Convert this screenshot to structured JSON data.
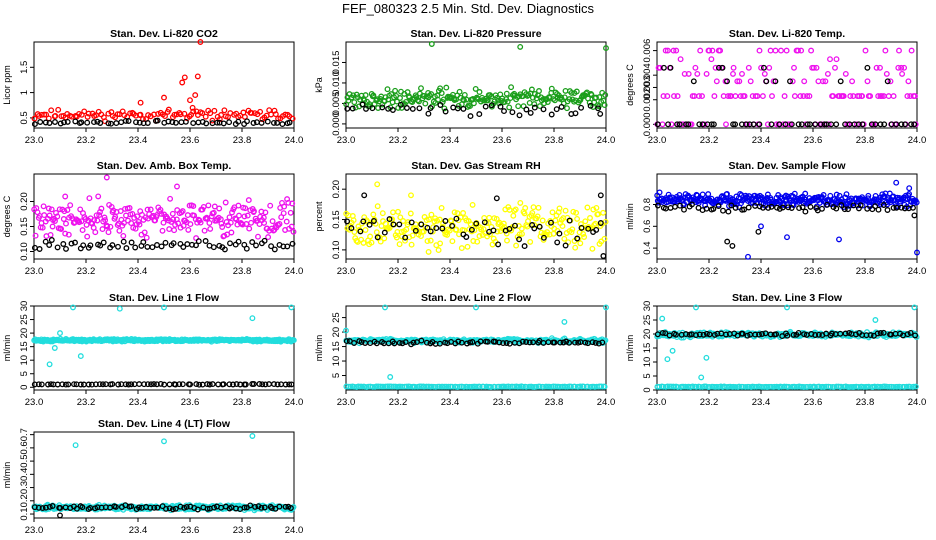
{
  "page": {
    "title": "FEF_080323  2.5 Min. Std. Dev. Diagnostics"
  },
  "chart_data": [
    {
      "type": "scatter",
      "title": "Stan. Dev. Li-820 CO2",
      "ylabel": "Licor ppm",
      "xlim": [
        23.0,
        24.0
      ],
      "ylim": [
        0.3,
        2.0
      ],
      "x_ticks": [
        "23.0",
        "23.2",
        "23.4",
        "23.6",
        "23.8",
        "24.0"
      ],
      "y_ticks": [
        {
          "v": 0.5,
          "t": "0.5"
        },
        {
          "v": 1.0,
          "t": "1"
        },
        {
          "v": 1.5,
          "t": "1.5"
        }
      ],
      "series": [
        {
          "color": "#ff0000",
          "gen": {
            "kind": "noise",
            "n": 110,
            "base": 0.42,
            "spread": 0.28,
            "seed": 11
          },
          "points": [
            [
              23.57,
              1.2
            ],
            [
              23.58,
              1.3
            ],
            [
              23.6,
              0.85
            ],
            [
              23.62,
              0.95
            ],
            [
              23.61,
              0.7
            ],
            [
              23.64,
              2.0
            ],
            [
              23.5,
              0.9
            ],
            [
              23.41,
              0.8
            ],
            [
              23.63,
              1.32
            ]
          ]
        },
        {
          "color": "#000000",
          "gen": {
            "kind": "noise",
            "n": 55,
            "base": 0.36,
            "spread": 0.1,
            "seed": 12
          }
        }
      ]
    },
    {
      "type": "scatter",
      "title": "Stan. Dev. Li-820 Pressure",
      "ylabel": "kPa",
      "xlim": [
        23.0,
        24.0
      ],
      "ylim": [
        -0.001,
        0.02
      ],
      "x_ticks": [
        "23.0",
        "23.2",
        "23.4",
        "23.6",
        "23.8",
        "24.0"
      ],
      "y_ticks": [
        {
          "v": 0.0,
          "t": "0.000"
        },
        {
          "v": 0.005,
          "t": "0.005"
        },
        {
          "v": 0.01,
          "t": "0.010"
        },
        {
          "v": 0.015,
          "t": "0.015"
        }
      ],
      "series": [
        {
          "color": "#1a9e1a",
          "gen": {
            "kind": "noise",
            "n": 230,
            "base": 0.003,
            "spread": 0.0065,
            "seed": 21
          },
          "points": [
            [
              23.33,
              0.0195
            ],
            [
              23.67,
              0.0188
            ],
            [
              24.0,
              0.0185
            ]
          ]
        },
        {
          "color": "#000000",
          "gen": {
            "kind": "noise",
            "n": 40,
            "base": 0.0015,
            "spread": 0.004,
            "seed": 22
          }
        }
      ]
    },
    {
      "type": "scatter",
      "title": "Stan. Dev. Li-820 Temp.",
      "ylabel": "degrees C",
      "xlim": [
        23.0,
        24.0
      ],
      "ylim": [
        -0.0003,
        0.0067
      ],
      "x_ticks": [
        "23.0",
        "23.2",
        "23.4",
        "23.6",
        "23.8",
        "24.0"
      ],
      "y_ticks": [
        {
          "v": 0.0,
          "t": "0.000"
        },
        {
          "v": 0.002,
          "t": "0.002"
        },
        {
          "v": 0.003,
          "t": "0.003"
        },
        {
          "v": 0.004,
          "t": "0.004"
        },
        {
          "v": 0.006,
          "t": "0.006"
        }
      ],
      "series": [
        {
          "color": "#ee11ee",
          "gen": {
            "kind": "levels",
            "n": 170,
            "levels": [
              0.0,
              0.0,
              0.0,
              0.0023,
              0.0023,
              0.0023,
              0.0035,
              0.0041,
              0.0046,
              0.0053,
              0.006
            ],
            "seed": 31
          }
        },
        {
          "color": "#000000",
          "gen": {
            "kind": "levels",
            "n": 60,
            "levels": [
              0.0,
              0.0,
              0.0,
              0.0,
              0.0035,
              0.0046
            ],
            "seed": 32
          }
        }
      ]
    },
    {
      "type": "scatter",
      "title": "Stan. Dev. Amb. Box Temp.",
      "ylabel": "degrees C",
      "xlim": [
        23.0,
        24.0
      ],
      "ylim": [
        0.085,
        0.255
      ],
      "x_ticks": [
        "23.0",
        "23.2",
        "23.4",
        "23.6",
        "23.8",
        "24.0"
      ],
      "y_ticks": [
        {
          "v": 0.1,
          "t": "0.10"
        },
        {
          "v": 0.15,
          "t": "0.15"
        },
        {
          "v": 0.2,
          "t": "0.20"
        }
      ],
      "series": [
        {
          "color": "#ee11ee",
          "gen": {
            "kind": "noise",
            "n": 260,
            "base": 0.115,
            "spread": 0.1,
            "seed": 41
          },
          "points": [
            [
              23.28,
              0.248
            ],
            [
              23.12,
              0.21
            ],
            [
              23.55,
              0.23
            ]
          ]
        },
        {
          "color": "#000000",
          "gen": {
            "kind": "noise",
            "n": 60,
            "base": 0.1,
            "spread": 0.025,
            "seed": 42
          }
        }
      ]
    },
    {
      "type": "scatter",
      "title": "Stan. Dev. Gas Stream RH",
      "ylabel": "percent",
      "xlim": [
        23.0,
        24.0
      ],
      "ylim": [
        0.085,
        0.225
      ],
      "x_ticks": [
        "23.0",
        "23.2",
        "23.4",
        "23.6",
        "23.8",
        "24.0"
      ],
      "y_ticks": [
        {
          "v": 0.1,
          "t": "0.10"
        },
        {
          "v": 0.15,
          "t": "0.15"
        },
        {
          "v": 0.2,
          "t": "0.20"
        }
      ],
      "series": [
        {
          "color": "#ffff00",
          "gen": {
            "kind": "noise",
            "n": 260,
            "base": 0.09,
            "spread": 0.095,
            "seed": 51
          },
          "points": [
            [
              23.12,
              0.208
            ],
            [
              23.25,
              0.19
            ]
          ]
        },
        {
          "color": "#000000",
          "gen": {
            "kind": "noise",
            "n": 50,
            "base": 0.1,
            "spread": 0.07,
            "seed": 52
          },
          "points": [
            [
              23.07,
              0.19
            ],
            [
              23.98,
              0.19
            ],
            [
              23.58,
              0.185
            ],
            [
              23.99,
              0.09
            ]
          ]
        }
      ]
    },
    {
      "type": "scatter",
      "title": "Stan. Dev. Sample Flow",
      "ylabel": "ml/min",
      "xlim": [
        23.0,
        24.0
      ],
      "ylim": [
        0.3,
        1.08
      ],
      "x_ticks": [
        "23.0",
        "23.2",
        "23.4",
        "23.6",
        "23.8",
        "24.0"
      ],
      "y_ticks": [
        {
          "v": 0.4,
          "t": "0.4"
        },
        {
          "v": 0.6,
          "t": "0.6"
        },
        {
          "v": 0.8,
          "t": "0.8"
        }
      ],
      "series": [
        {
          "color": "#0000ee",
          "gen": {
            "kind": "noise",
            "n": 320,
            "base": 0.76,
            "spread": 0.16,
            "seed": 61
          },
          "points": [
            [
              23.35,
              0.32
            ],
            [
              23.5,
              0.5
            ],
            [
              23.7,
              0.48
            ],
            [
              23.92,
              1.0
            ],
            [
              23.97,
              0.95
            ],
            [
              24.0,
              0.36
            ],
            [
              23.57,
              0.9
            ],
            [
              23.4,
              0.6
            ]
          ]
        },
        {
          "color": "#000000",
          "gen": {
            "kind": "noise",
            "n": 60,
            "base": 0.72,
            "spread": 0.1,
            "seed": 62
          },
          "points": [
            [
              23.27,
              0.46
            ],
            [
              23.29,
              0.42
            ],
            [
              23.99,
              0.7
            ],
            [
              23.39,
              0.55
            ]
          ]
        }
      ]
    },
    {
      "type": "scatter",
      "title": "Stan. Dev. Line 1 Flow",
      "ylabel": "ml/min",
      "xlim": [
        23.0,
        24.0
      ],
      "ylim": [
        -1,
        30
      ],
      "x_ticks": [
        "23.0",
        "23.2",
        "23.4",
        "23.6",
        "23.8",
        "24.0"
      ],
      "y_ticks": [
        {
          "v": 0,
          "t": "0"
        },
        {
          "v": 5,
          "t": "5"
        },
        {
          "v": 10,
          "t": "10"
        },
        {
          "v": 15,
          "t": "15"
        },
        {
          "v": 20,
          "t": "20"
        },
        {
          "v": 25,
          "t": "25"
        },
        {
          "v": 30,
          "t": "30"
        }
      ],
      "series": [
        {
          "color": "#22dddd",
          "gen": {
            "kind": "noise",
            "n": 330,
            "base": 16.7,
            "spread": 1.3,
            "seed": 71
          },
          "points": [
            [
              23.15,
              29.5
            ],
            [
              23.5,
              29.5
            ],
            [
              23.84,
              25.5
            ],
            [
              23.99,
              29.5
            ],
            [
              23.18,
              11.5
            ],
            [
              23.06,
              8.5
            ],
            [
              23.08,
              14.5
            ],
            [
              23.1,
              20.0
            ],
            [
              23.33,
              29.0
            ]
          ]
        },
        {
          "color": "#000000",
          "gen": {
            "kind": "noise",
            "n": 70,
            "base": 0.9,
            "spread": 0.4,
            "seed": 72
          }
        }
      ]
    },
    {
      "type": "scatter",
      "title": "Stan. Dev. Line 2 Flow",
      "ylabel": "ml/min",
      "xlim": [
        23.0,
        24.0
      ],
      "ylim": [
        0,
        29
      ],
      "x_ticks": [
        "23.0",
        "23.2",
        "23.4",
        "23.6",
        "23.8",
        "24.0"
      ],
      "y_ticks": [
        {
          "v": 5,
          "t": "5"
        },
        {
          "v": 10,
          "t": "10"
        },
        {
          "v": 15,
          "t": "15"
        },
        {
          "v": 20,
          "t": "20"
        },
        {
          "v": 25,
          "t": "25"
        }
      ],
      "series": [
        {
          "color": "#22dddd",
          "gen": {
            "kind": "noise",
            "n": 300,
            "base": 16.0,
            "spread": 2.0,
            "seed": 81
          },
          "points": [
            [
              23.0,
              20.5
            ],
            [
              23.17,
              4.5
            ],
            [
              23.84,
              23.5
            ],
            [
              23.15,
              28.5
            ],
            [
              23.5,
              28.5
            ],
            [
              24.0,
              28.5
            ]
          ]
        },
        {
          "color": "#22dddd",
          "gen": {
            "kind": "noise",
            "n": 140,
            "base": 1.0,
            "spread": 0.3,
            "seed": 83
          }
        },
        {
          "color": "#000000",
          "gen": {
            "kind": "noise",
            "n": 70,
            "base": 15.6,
            "spread": 1.6,
            "seed": 82
          }
        }
      ]
    },
    {
      "type": "scatter",
      "title": "Stan. Dev. Line 3 Flow",
      "ylabel": "ml/min",
      "xlim": [
        23.0,
        24.0
      ],
      "ylim": [
        0,
        30
      ],
      "x_ticks": [
        "23.0",
        "23.2",
        "23.4",
        "23.6",
        "23.8",
        "24.0"
      ],
      "y_ticks": [
        {
          "v": 0,
          "t": "0"
        },
        {
          "v": 5,
          "t": "5"
        },
        {
          "v": 10,
          "t": "10"
        },
        {
          "v": 15,
          "t": "15"
        },
        {
          "v": 20,
          "t": "20"
        },
        {
          "v": 25,
          "t": "25"
        },
        {
          "v": 30,
          "t": "30"
        }
      ],
      "series": [
        {
          "color": "#22dddd",
          "gen": {
            "kind": "noise",
            "n": 300,
            "base": 18.5,
            "spread": 2.5,
            "seed": 91
          },
          "points": [
            [
              23.15,
              29.5
            ],
            [
              23.5,
              29.5
            ],
            [
              23.84,
              25.0
            ],
            [
              23.99,
              29.5
            ],
            [
              23.17,
              4.5
            ],
            [
              23.19,
              11.5
            ],
            [
              23.04,
              11.0
            ],
            [
              23.06,
              14.0
            ],
            [
              23.02,
              25.5
            ]
          ]
        },
        {
          "color": "#22dddd",
          "gen": {
            "kind": "noise",
            "n": 140,
            "base": 1.0,
            "spread": 0.3,
            "seed": 93
          }
        },
        {
          "color": "#000000",
          "gen": {
            "kind": "noise",
            "n": 70,
            "base": 19.0,
            "spread": 1.8,
            "seed": 92
          }
        }
      ]
    },
    {
      "type": "scatter",
      "title": "Stan. Dev. Line 4 (LT) Flow",
      "ylabel": "ml/min",
      "xlim": [
        23.0,
        24.0
      ],
      "ylim": [
        0.07,
        0.72
      ],
      "x_ticks": [
        "23.0",
        "23.2",
        "23.4",
        "23.6",
        "23.8",
        "24.0"
      ],
      "y_ticks": [
        {
          "v": 0.1,
          "t": "0.1"
        },
        {
          "v": 0.2,
          "t": "0.2"
        },
        {
          "v": 0.3,
          "t": "0.3"
        },
        {
          "v": 0.4,
          "t": "0.4"
        },
        {
          "v": 0.5,
          "t": "0.5"
        },
        {
          "v": 0.6,
          "t": "0.6"
        },
        {
          "v": 0.7,
          "t": "0.7"
        }
      ],
      "series": [
        {
          "color": "#22dddd",
          "gen": {
            "kind": "noise",
            "n": 330,
            "base": 0.125,
            "spread": 0.05,
            "seed": 101
          },
          "points": [
            [
              23.16,
              0.62
            ],
            [
              23.5,
              0.65
            ],
            [
              23.84,
              0.69
            ]
          ]
        },
        {
          "color": "#000000",
          "gen": {
            "kind": "noise",
            "n": 70,
            "base": 0.13,
            "spread": 0.04,
            "seed": 102
          },
          "points": [
            [
              23.1,
              0.09
            ]
          ]
        }
      ]
    }
  ]
}
